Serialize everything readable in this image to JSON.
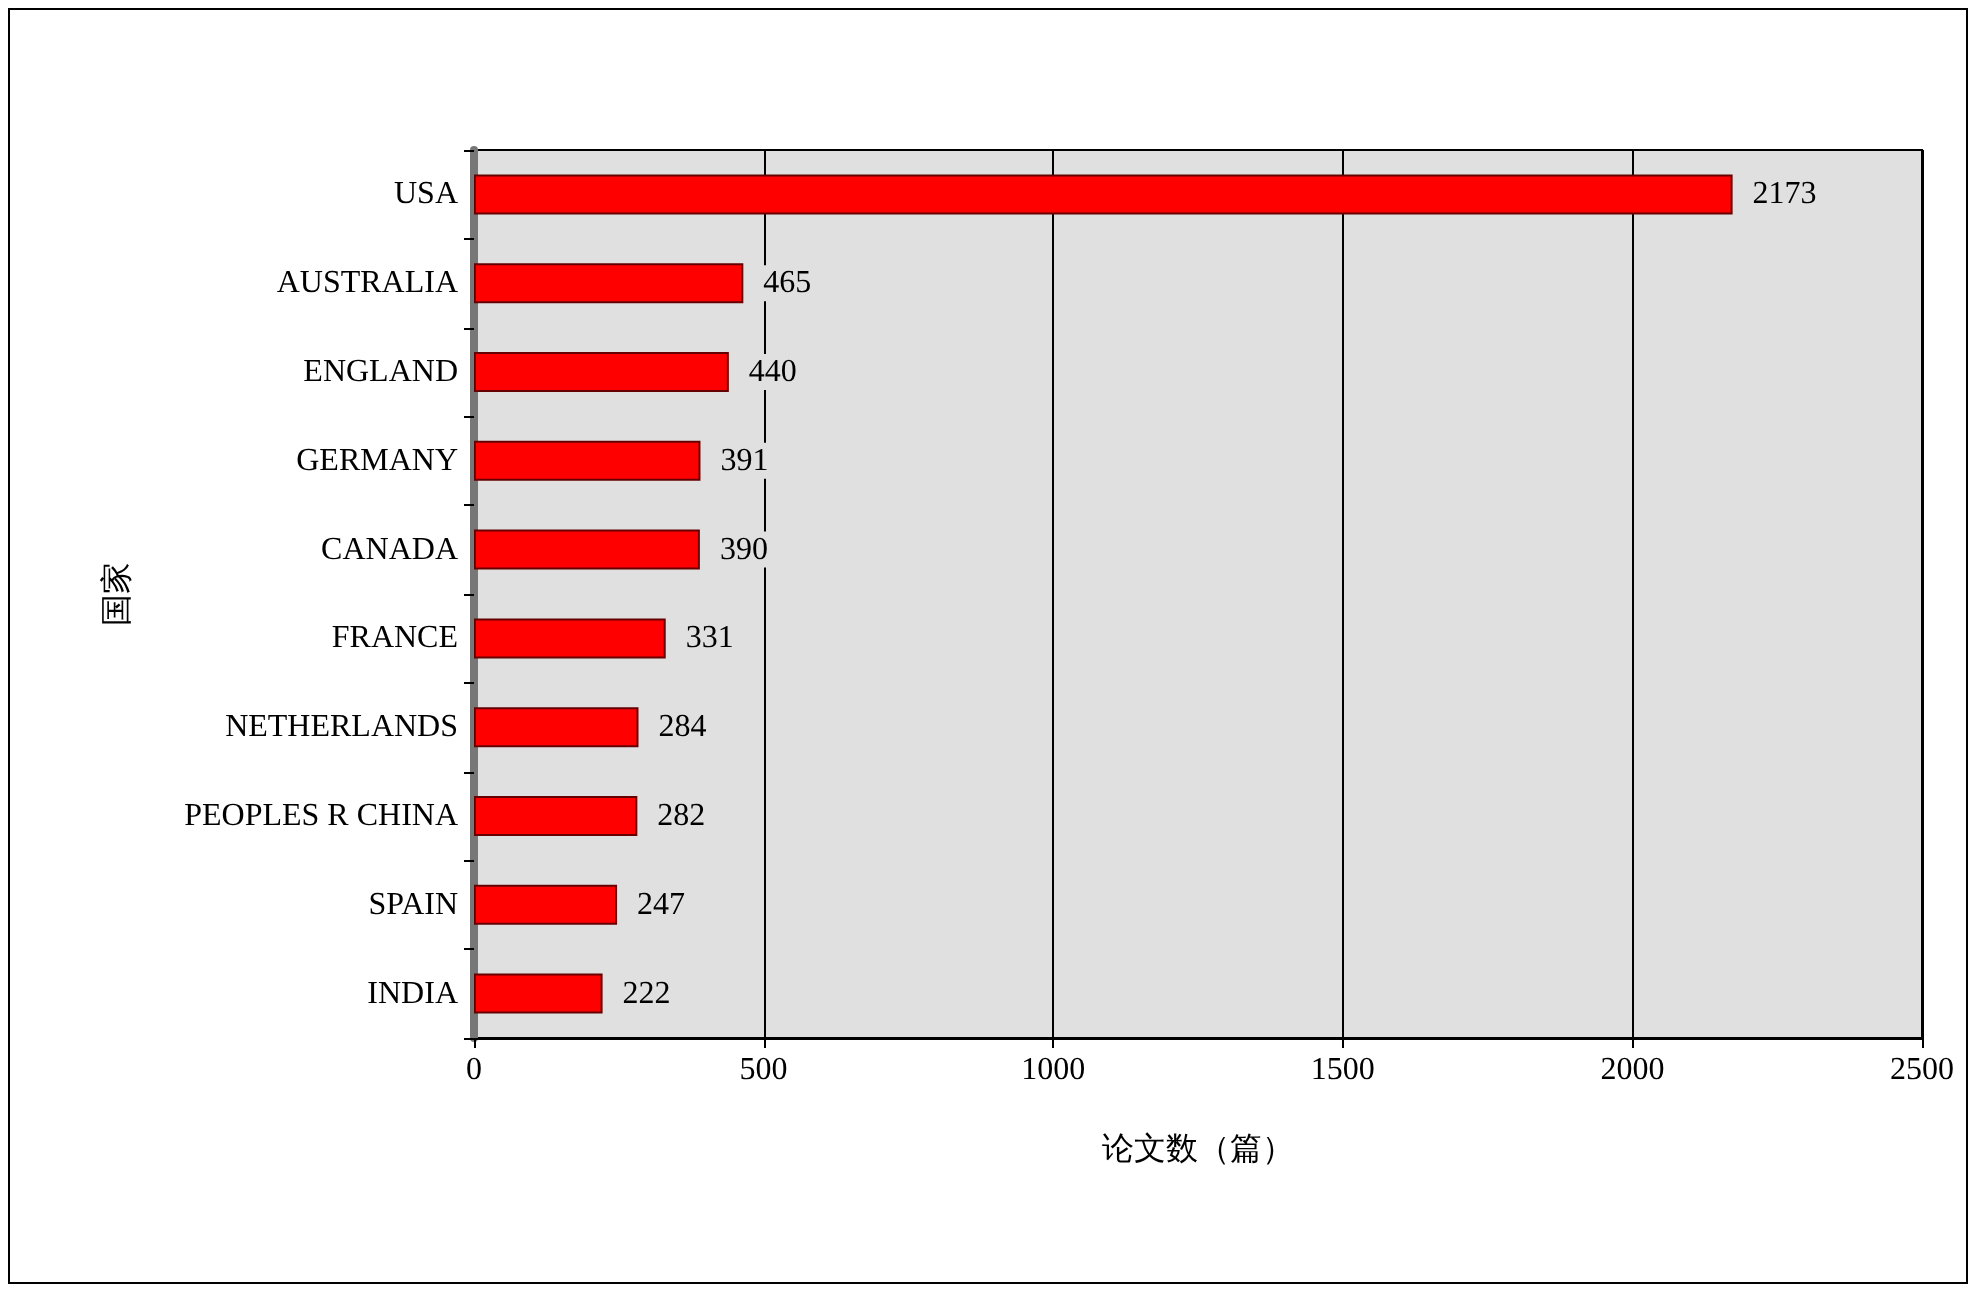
{
  "chart_data": {
    "type": "bar",
    "orientation": "horizontal",
    "xlabel": "论文数（篇）",
    "ylabel": "国家",
    "categories": [
      "USA",
      "AUSTRALIA",
      "ENGLAND",
      "GERMANY",
      "CANADA",
      "FRANCE",
      "NETHERLANDS",
      "PEOPLES R CHINA",
      "SPAIN",
      "INDIA"
    ],
    "values": [
      2173,
      465,
      440,
      391,
      390,
      331,
      284,
      282,
      247,
      222
    ],
    "color": "#ff0000",
    "xlim": [
      0,
      2500
    ],
    "xticks": [
      0,
      500,
      1000,
      1500,
      2000,
      2500
    ],
    "grid": "x",
    "data_labels": true
  }
}
